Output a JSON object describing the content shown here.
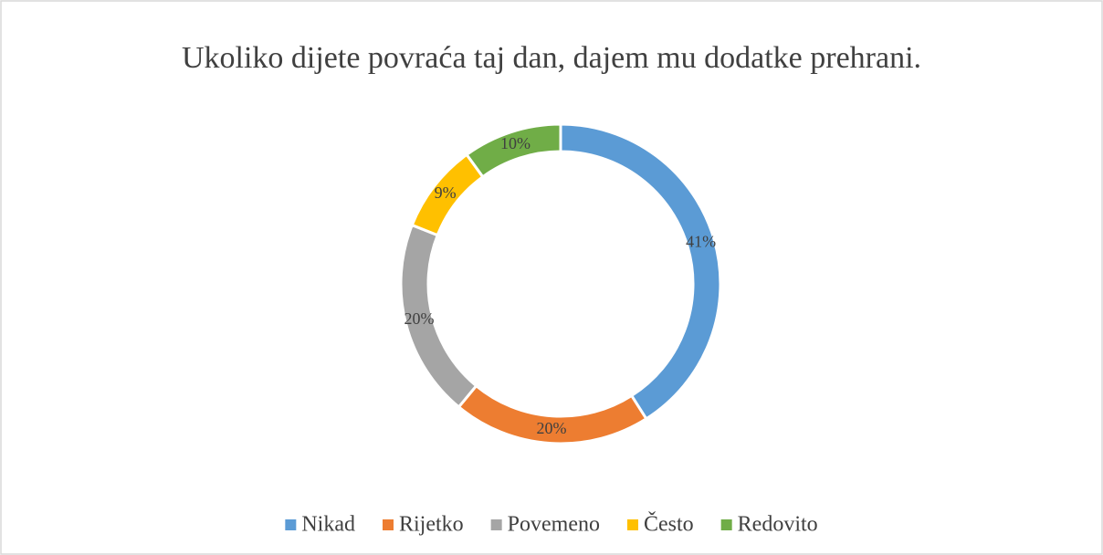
{
  "chart_data": {
    "type": "doughnut",
    "title": "Ukoliko dijete povraća taj dan, dajem mu dodatke prehrani.",
    "categories": [
      "Nikad",
      "Rijetko",
      "Povemeno",
      "Često",
      "Redovito"
    ],
    "values": [
      41,
      20,
      20,
      9,
      10
    ],
    "value_labels": [
      "41%",
      "20%",
      "20%",
      "9%",
      "10%"
    ],
    "colors": [
      "#5b9bd5",
      "#ed7d31",
      "#a5a5a5",
      "#ffc000",
      "#70ad47"
    ],
    "legend": "bottom"
  }
}
